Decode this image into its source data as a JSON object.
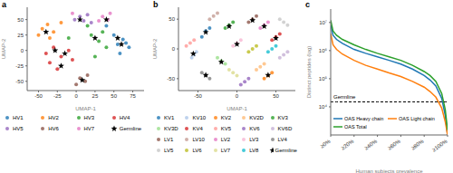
{
  "chart_data": [
    {
      "type": "scatter",
      "title": "a",
      "x_label": "UMAP-1",
      "y_label": "UMAP-2",
      "xlim": [
        -65,
        90
      ],
      "ylim": [
        -65,
        70
      ],
      "xticks": [
        -50,
        -25,
        0,
        25,
        50,
        75
      ],
      "yticks": [
        -50,
        -25,
        0,
        25,
        50
      ],
      "legend": "bottom",
      "series": [
        {
          "name": "HV1",
          "color": "#1f77b4",
          "marker": "circle",
          "x": [
            55,
            62,
            70,
            58,
            66,
            50,
            40
          ],
          "y": [
            10,
            18,
            5,
            -5,
            12,
            25,
            40
          ]
        },
        {
          "name": "HV2",
          "color": "#ff7f0e",
          "marker": "circle",
          "x": [
            -45,
            -38,
            -30,
            -50,
            -35,
            -20
          ],
          "y": [
            35,
            42,
            30,
            25,
            20,
            45
          ]
        },
        {
          "name": "HV3",
          "color": "#2ca02c",
          "marker": "circle",
          "x": [
            20,
            30,
            35,
            25,
            40,
            15,
            -10
          ],
          "y": [
            25,
            15,
            30,
            -10,
            5,
            40,
            20
          ]
        },
        {
          "name": "HV4",
          "color": "#d62728",
          "marker": "circle",
          "x": [
            -40,
            -30,
            -20,
            -10,
            -35,
            -25,
            -5
          ],
          "y": [
            -5,
            5,
            -10,
            0,
            -20,
            -30,
            -15
          ]
        },
        {
          "name": "HV5",
          "color": "#9467bd",
          "marker": "circle",
          "x": [
            5,
            10,
            -2,
            15,
            20
          ],
          "y": [
            55,
            48,
            50,
            58,
            45
          ]
        },
        {
          "name": "HV6",
          "color": "#8c564b",
          "marker": "circle",
          "x": [
            5,
            12,
            0,
            15
          ],
          "y": [
            -45,
            -50,
            -55,
            -40
          ]
        },
        {
          "name": "HV7",
          "color": "#e377c2",
          "marker": "circle",
          "x": [
            35,
            42,
            30,
            45,
            -5
          ],
          "y": [
            55,
            50,
            48,
            60,
            60
          ]
        },
        {
          "name": "Germline",
          "color": "#000000",
          "marker": "star",
          "x": [
            -40,
            -28,
            -15,
            5,
            25,
            60,
            40,
            8,
            -20,
            55
          ],
          "y": [
            30,
            0,
            -5,
            50,
            20,
            10,
            50,
            -48,
            -25,
            20
          ]
        }
      ]
    },
    {
      "type": "scatter",
      "title": "b",
      "x_label": "UMAP-1",
      "y_label": "UMAP-2",
      "xlim": [
        -75,
        75
      ],
      "ylim": [
        -70,
        70
      ],
      "xticks": [
        -50,
        0,
        50
      ],
      "yticks": [
        -50,
        0,
        50
      ],
      "legend": "bottom",
      "series": [
        {
          "name": "KV1",
          "color": "#1f77b4",
          "marker": "circle",
          "x": [
            -40,
            -45,
            -35
          ],
          "y": [
            30,
            20,
            35
          ]
        },
        {
          "name": "KV10",
          "color": "#aec7e8",
          "marker": "circle",
          "x": [
            -55,
            -52,
            -58
          ],
          "y": [
            -10,
            -5,
            -15
          ]
        },
        {
          "name": "KV2",
          "color": "#ff7f0e",
          "marker": "circle",
          "x": [
            40,
            45,
            35
          ],
          "y": [
            -45,
            -40,
            -50
          ]
        },
        {
          "name": "KV2D",
          "color": "#ffbb78",
          "marker": "circle",
          "x": [
            30,
            25,
            35
          ],
          "y": [
            -30,
            -35,
            -25
          ]
        },
        {
          "name": "KV3",
          "color": "#2ca02c",
          "marker": "circle",
          "x": [
            -10,
            -5,
            -15
          ],
          "y": [
            40,
            45,
            35
          ]
        },
        {
          "name": "KV3D",
          "color": "#98df8a",
          "marker": "circle",
          "x": [
            -20,
            -15,
            -25
          ],
          "y": [
            -20,
            -25,
            -15
          ]
        },
        {
          "name": "KV4",
          "color": "#d62728",
          "marker": "circle",
          "x": [
            50,
            55,
            45
          ],
          "y": [
            20,
            25,
            15
          ]
        },
        {
          "name": "KV5",
          "color": "#ff9896",
          "marker": "circle",
          "x": [
            -60,
            -65,
            -55
          ],
          "y": [
            10,
            5,
            15
          ]
        },
        {
          "name": "KV6",
          "color": "#9467bd",
          "marker": "circle",
          "x": [
            10,
            15,
            5
          ],
          "y": [
            -55,
            -50,
            -60
          ]
        },
        {
          "name": "KV6D",
          "color": "#c5b0d5",
          "marker": "circle",
          "x": [
            60,
            65,
            55
          ],
          "y": [
            -10,
            -5,
            -15
          ]
        },
        {
          "name": "LV1",
          "color": "#8c564b",
          "marker": "circle",
          "x": [
            20,
            25,
            15
          ],
          "y": [
            50,
            55,
            45
          ]
        },
        {
          "name": "LV10",
          "color": "#c49c94",
          "marker": "circle",
          "x": [
            -30,
            -25,
            -35
          ],
          "y": [
            55,
            60,
            50
          ]
        },
        {
          "name": "LV2",
          "color": "#e377c2",
          "marker": "circle",
          "x": [
            35,
            40,
            30
          ],
          "y": [
            40,
            45,
            35
          ]
        },
        {
          "name": "LV3",
          "color": "#f7b6d2",
          "marker": "circle",
          "x": [
            0,
            5,
            -5
          ],
          "y": [
            10,
            15,
            5
          ]
        },
        {
          "name": "LV4",
          "color": "#7f7f7f",
          "marker": "circle",
          "x": [
            -40,
            -35,
            -45
          ],
          "y": [
            -45,
            -50,
            -40
          ]
        },
        {
          "name": "LV5",
          "color": "#c7c7c7",
          "marker": "circle",
          "x": [
            60,
            65,
            55
          ],
          "y": [
            45,
            40,
            50
          ]
        },
        {
          "name": "LV6",
          "color": "#bcbd22",
          "marker": "circle",
          "x": [
            20,
            25,
            15
          ],
          "y": [
            0,
            5,
            -5
          ]
        },
        {
          "name": "LV7",
          "color": "#dbdb8d",
          "marker": "circle",
          "x": [
            -5,
            0,
            -10
          ],
          "y": [
            -40,
            -45,
            -35
          ]
        },
        {
          "name": "LV8",
          "color": "#17becf",
          "marker": "circle",
          "x": [
            45,
            50,
            40
          ],
          "y": [
            0,
            5,
            -5
          ]
        },
        {
          "name": "Germline",
          "color": "#000000",
          "marker": "star",
          "x": [
            -40,
            -56,
            40,
            -10,
            -20,
            50,
            0,
            20,
            35,
            -40
          ],
          "y": [
            28,
            -8,
            -44,
            38,
            -22,
            18,
            8,
            48,
            38,
            -44
          ]
        }
      ]
    },
    {
      "type": "line",
      "title": "c",
      "x_label": "Human subjects prevalence",
      "y_label": "Distinct peptides (log)",
      "log": "y",
      "legend": "lower left",
      "xlim": [
        0,
        100
      ],
      "ylim": [
        1000,
        30000000
      ],
      "xticks": [
        {
          "value": 0,
          "label": "≥0%"
        },
        {
          "value": 20,
          "label": "≥20%"
        },
        {
          "value": 40,
          "label": "≥40%"
        },
        {
          "value": 60,
          "label": "≥60%"
        },
        {
          "value": 80,
          "label": "≥80%"
        },
        {
          "value": 100,
          "label": "≥100%"
        }
      ],
      "yticks": [
        {
          "value": 10000,
          "label": "10⁴"
        },
        {
          "value": 100000,
          "label": "10⁵"
        },
        {
          "value": 1000000,
          "label": "10⁶"
        },
        {
          "value": 10000000,
          "label": "10⁷"
        }
      ],
      "x": [
        0,
        2,
        5,
        10,
        20,
        30,
        40,
        50,
        60,
        70,
        80,
        85,
        90,
        95,
        98,
        100
      ],
      "series": [
        {
          "name": "OAS Heavy chain",
          "color": "#1f77b4",
          "line_style": "solid",
          "values": [
            8000000,
            3500000,
            2500000,
            1800000,
            1100000,
            800000,
            600000,
            450000,
            330000,
            220000,
            130000,
            90000,
            55000,
            20000,
            5000,
            1000
          ]
        },
        {
          "name": "OAS Light chain",
          "color": "#ff7f0e",
          "line_style": "solid",
          "values": [
            4000000,
            1600000,
            1100000,
            750000,
            450000,
            300000,
            220000,
            160000,
            120000,
            80000,
            50000,
            35000,
            22000,
            9000,
            3000,
            1000
          ]
        },
        {
          "name": "OAS Total",
          "color": "#2ca02c",
          "line_style": "solid",
          "values": [
            12000000,
            5000000,
            3500000,
            2500000,
            1600000,
            1100000,
            800000,
            600000,
            450000,
            300000,
            180000,
            130000,
            80000,
            30000,
            8000,
            1500
          ]
        },
        {
          "name": "Germline",
          "type": "reference",
          "color": "#000000",
          "line_style": "dashed",
          "values": [
            15000,
            15000,
            15000,
            15000,
            15000,
            15000,
            15000,
            15000,
            15000,
            15000,
            15000,
            15000,
            15000,
            15000,
            15000,
            15000
          ]
        }
      ]
    }
  ]
}
